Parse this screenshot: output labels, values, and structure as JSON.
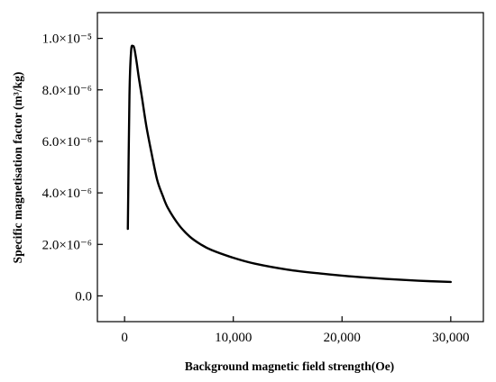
{
  "chart_data": {
    "type": "line",
    "title": "",
    "xlabel": "Background magnetic field strength(Oe)",
    "ylabel": "Specific magnetisation factor  (m³/kg)",
    "xlim": [
      -2500,
      33000
    ],
    "ylim": [
      -1e-06,
      1.1e-05
    ],
    "grid": false,
    "legend": "none",
    "x_ticks": [
      {
        "value": 0,
        "label": "0"
      },
      {
        "value": 10000,
        "label": "10,000"
      },
      {
        "value": 20000,
        "label": "20,000"
      },
      {
        "value": 30000,
        "label": "30,000"
      }
    ],
    "y_ticks": [
      {
        "value": 0,
        "label": "0.0"
      },
      {
        "value": 2e-06,
        "label": "2.0×10⁻⁶"
      },
      {
        "value": 4e-06,
        "label": "4.0×10⁻⁶"
      },
      {
        "value": 6e-06,
        "label": "6.0×10⁻⁶"
      },
      {
        "value": 8e-06,
        "label": "8.0×10⁻⁶"
      },
      {
        "value": 1e-05,
        "label": "1.0×10⁻⁵"
      }
    ],
    "series": [
      {
        "color": "#000000",
        "x": [
          300,
          450,
          600,
          750,
          900,
          1100,
          1300,
          1600,
          2000,
          2500,
          3000,
          3500,
          4000,
          5000,
          6000,
          7000,
          8000,
          10000,
          12000,
          15000,
          18000,
          21000,
          24000,
          27000,
          30000
        ],
        "y": [
          2.6e-06,
          7.8e-06,
          9.5e-06,
          9.7e-06,
          9.6e-06,
          9.1e-06,
          8.5e-06,
          7.7e-06,
          6.6e-06,
          5.5e-06,
          4.5e-06,
          3.9e-06,
          3.4e-06,
          2.75e-06,
          2.3e-06,
          2e-06,
          1.78e-06,
          1.48e-06,
          1.25e-06,
          1.02e-06,
          8.7e-07,
          7.5e-07,
          6.6e-07,
          5.9e-07,
          5.4e-07
        ]
      }
    ]
  }
}
